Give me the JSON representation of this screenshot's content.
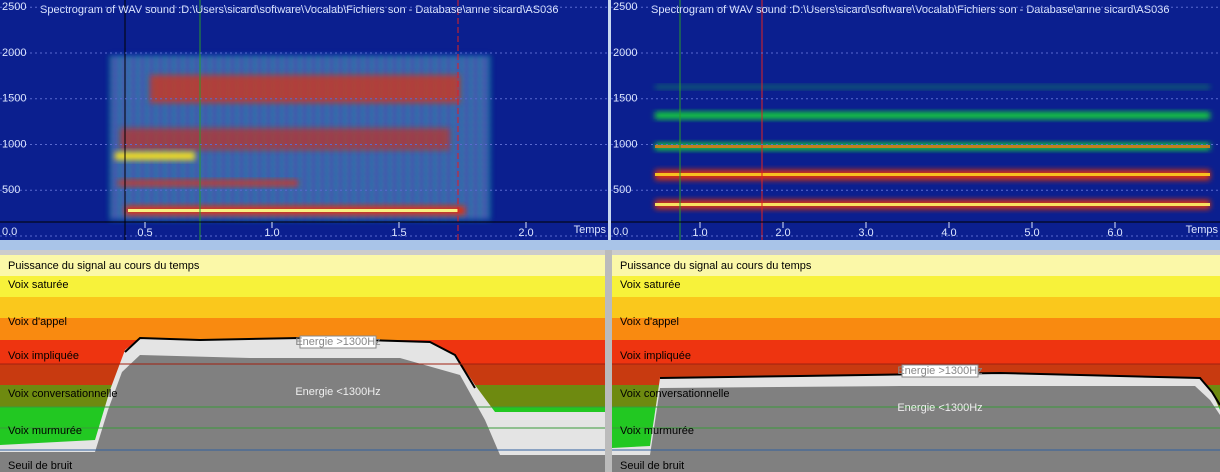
{
  "panels": [
    {
      "title": "Spectrogram of WAV sound :D:\\Users\\sicard\\software\\Vocalab\\Fichiers son - Database\\anne sicard\\AS036",
      "yticks": [
        2500,
        2000,
        1500,
        1000,
        500,
        {
          "value": 0,
          "label": "0.0"
        }
      ],
      "xticks": [
        {
          "value": 0.5,
          "label": "0.5"
        },
        {
          "value": 1,
          "label": "1.0"
        },
        {
          "value": 1.5,
          "label": "1.5"
        },
        {
          "value": 2,
          "label": "2.0"
        }
      ],
      "x_axis_label": "Temps"
    },
    {
      "title": "Spectrogram of WAV sound :D:\\Users\\sicard\\software\\Vocalab\\Fichiers son - Database\\anne sicard\\AS036",
      "yticks": [
        2500,
        2000,
        1500,
        1000,
        500,
        {
          "value": 0,
          "label": "0.0"
        }
      ],
      "xticks": [
        {
          "value": 1,
          "label": "1.0"
        },
        {
          "value": 2,
          "label": "2.0"
        },
        {
          "value": 3,
          "label": "3.0"
        },
        {
          "value": 4,
          "label": "4.0"
        },
        {
          "value": 5,
          "label": "5.0"
        },
        {
          "value": 6,
          "label": "6.0"
        }
      ],
      "x_axis_label": "Temps"
    }
  ],
  "energy_panels": [
    {
      "title": "Puissance du signal au cours du temps",
      "zones": [
        "Voix saturée",
        "Voix d'appel",
        "Voix impliquée",
        "Voix conversationnelle",
        "Voix murmurée",
        "Seuil de bruit"
      ],
      "upper_label": "Energie >1300Hz",
      "lower_label": "Energie <1300Hz"
    },
    {
      "title": "Puissance du signal au cours du temps",
      "zones": [
        "Voix saturée",
        "Voix d'appel",
        "Voix impliquée",
        "Voix conversationnelle",
        "Voix murmurée",
        "Seuil de bruit"
      ],
      "upper_label": "Energie >1300Hz",
      "lower_label": "Energie <1300Hz"
    }
  ]
}
